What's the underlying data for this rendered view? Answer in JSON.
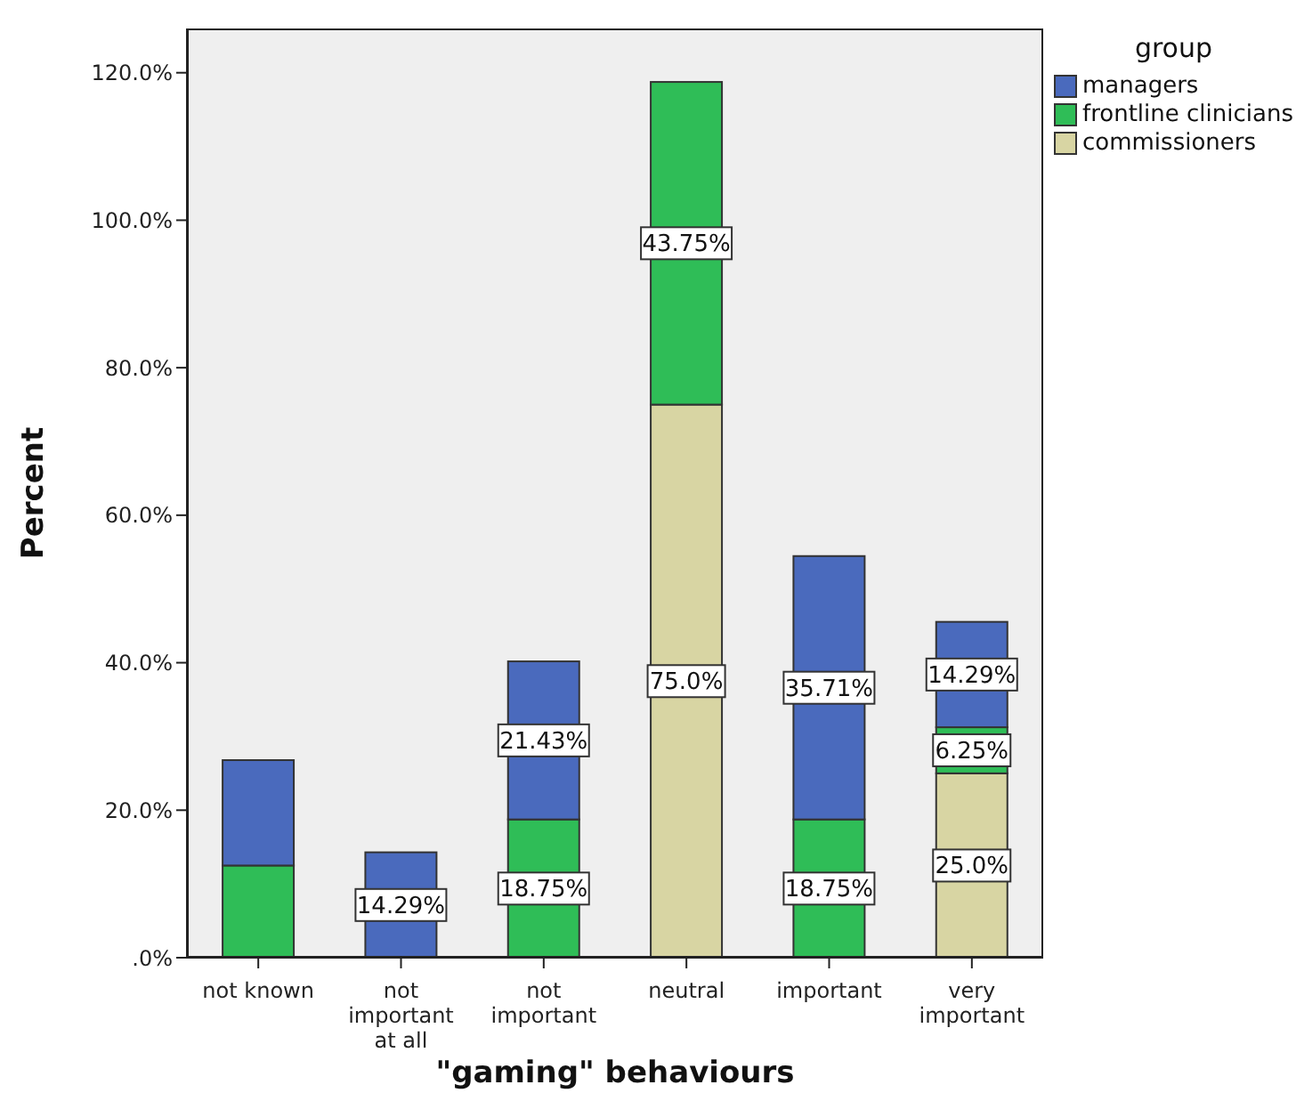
{
  "chart_data": {
    "type": "bar",
    "stacked": true,
    "xlabel": "\"gaming\" behaviours",
    "ylabel": "Percent",
    "legend_title": "group",
    "legend": "top right",
    "categories": [
      "not known",
      "not important at all",
      "not important",
      "neutral",
      "important",
      "very important"
    ],
    "series": [
      {
        "name": "commissioners",
        "color": "#d8d5a3",
        "values": [
          null,
          null,
          null,
          75.0,
          null,
          25.0
        ],
        "value_labels": [
          null,
          null,
          null,
          "75.0%",
          null,
          "25.0%"
        ]
      },
      {
        "name": "frontline clinicians",
        "color": "#2fbd57",
        "values": [
          12.5,
          null,
          18.75,
          43.75,
          18.75,
          6.25
        ],
        "value_labels": [
          null,
          null,
          "18.75%",
          "43.75%",
          "18.75%",
          "6.25%"
        ]
      },
      {
        "name": "managers",
        "color": "#4a6abd",
        "values": [
          14.29,
          14.29,
          21.43,
          null,
          35.71,
          14.29
        ],
        "value_labels": [
          null,
          "14.29%",
          "21.43%",
          null,
          "35.71%",
          "14.29%"
        ]
      }
    ],
    "ylim": [
      0,
      126
    ],
    "yticks": [
      {
        "value": 0,
        "label": ".0%"
      },
      {
        "value": 20,
        "label": "20.0%"
      },
      {
        "value": 40,
        "label": "40.0%"
      },
      {
        "value": 60,
        "label": "60.0%"
      },
      {
        "value": 80,
        "label": "80.0%"
      },
      {
        "value": 100,
        "label": "100.0%"
      },
      {
        "value": 120,
        "label": "120.0%"
      }
    ]
  }
}
